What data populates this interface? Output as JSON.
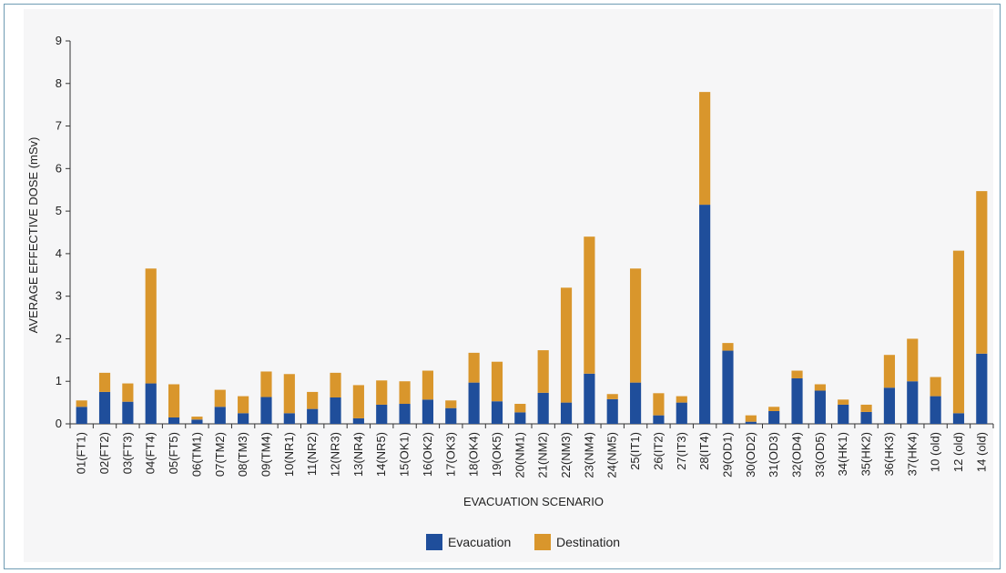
{
  "chart_data": {
    "type": "bar",
    "stacked": true,
    "xlabel": "EVACUATION SCENARIO",
    "ylabel": "AVERAGE EFFECTIVE DOSE (mSv)",
    "ylim": [
      0,
      9
    ],
    "yticks": [
      0,
      1,
      2,
      3,
      4,
      5,
      6,
      7,
      8,
      9
    ],
    "grid": false,
    "legend_position": "bottom",
    "categories": [
      "01(FT1)",
      "02(FT2)",
      "03(FT3)",
      "04(FT4)",
      "05(FT5)",
      "06(TM1)",
      "07(TM2)",
      "08(TM3)",
      "09(TM4)",
      "10(NR1)",
      "11(NR2)",
      "12(NR3)",
      "13(NR4)",
      "14(NR5)",
      "15(OK1)",
      "16(OK2)",
      "17(OK3)",
      "18(OK4)",
      "19(OK5)",
      "20(NM1)",
      "21(NM2)",
      "22(NM3)",
      "23(NM4)",
      "24(NM5)",
      "25(IT1)",
      "26(IT2)",
      "27(IT3)",
      "28(IT4)",
      "29(OD1)",
      "30(OD2)",
      "31(OD3)",
      "32(OD4)",
      "33(OD5)",
      "34(HK1)",
      "35(HK2)",
      "36(HK3)",
      "37(HK4)",
      "10 (old)",
      "12 (old)",
      "14 (old)"
    ],
    "series": [
      {
        "name": "Evacuation",
        "color": "#1f4e9b",
        "values": [
          0.4,
          0.75,
          0.52,
          0.95,
          0.15,
          0.1,
          0.4,
          0.25,
          0.63,
          0.25,
          0.35,
          0.62,
          0.13,
          0.45,
          0.47,
          0.57,
          0.37,
          0.97,
          0.53,
          0.27,
          0.73,
          0.5,
          1.18,
          0.58,
          0.97,
          0.2,
          0.5,
          5.15,
          1.72,
          0.05,
          0.3,
          1.07,
          0.78,
          0.45,
          0.28,
          0.85,
          1.0,
          0.65,
          0.25,
          1.65
        ]
      },
      {
        "name": "Destination",
        "color": "#d9962c",
        "values": [
          0.15,
          0.45,
          0.43,
          2.7,
          0.78,
          0.07,
          0.4,
          0.4,
          0.6,
          0.92,
          0.4,
          0.58,
          0.78,
          0.57,
          0.53,
          0.68,
          0.18,
          0.7,
          0.93,
          0.2,
          1.0,
          2.7,
          3.22,
          0.12,
          2.68,
          0.52,
          0.15,
          2.65,
          0.18,
          0.15,
          0.1,
          0.18,
          0.15,
          0.12,
          0.17,
          0.77,
          1.0,
          0.45,
          3.82,
          3.82
        ]
      }
    ]
  }
}
